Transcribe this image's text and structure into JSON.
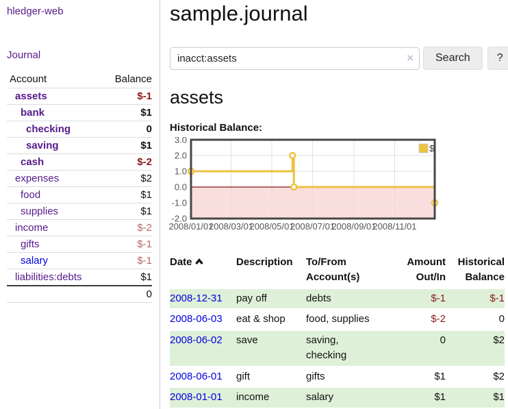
{
  "app": {
    "brand": "hledger-web",
    "nav": {
      "journal": "Journal"
    }
  },
  "sidebar": {
    "account_col": "Account",
    "balance_col": "Balance",
    "accounts": [
      {
        "name": "assets",
        "level": 1,
        "bold": true,
        "balance": "$-1",
        "neg": "strong",
        "link": "purple"
      },
      {
        "name": "bank",
        "level": 2,
        "bold": true,
        "balance": "$1",
        "neg": "none",
        "link": "purple"
      },
      {
        "name": "checking",
        "level": 3,
        "bold": true,
        "balance": "0",
        "neg": "none",
        "link": "purple"
      },
      {
        "name": "saving",
        "level": 3,
        "bold": true,
        "balance": "$1",
        "neg": "none",
        "link": "purple"
      },
      {
        "name": "cash",
        "level": 2,
        "bold": true,
        "balance": "$-2",
        "neg": "strong",
        "link": "purple"
      },
      {
        "name": "expenses",
        "level": 1,
        "bold": false,
        "balance": "$2",
        "neg": "none",
        "link": "purple"
      },
      {
        "name": "food",
        "level": 2,
        "bold": false,
        "balance": "$1",
        "neg": "none",
        "link": "purple"
      },
      {
        "name": "supplies",
        "level": 2,
        "bold": false,
        "balance": "$1",
        "neg": "none",
        "link": "purple"
      },
      {
        "name": "income",
        "level": 1,
        "bold": false,
        "balance": "$-2",
        "neg": "dim",
        "link": "purple"
      },
      {
        "name": "gifts",
        "level": 2,
        "bold": false,
        "balance": "$-1",
        "neg": "dim",
        "link": "purple"
      },
      {
        "name": "salary",
        "level": 2,
        "bold": false,
        "balance": "$-1",
        "neg": "dim",
        "link": "blue"
      },
      {
        "name": "liabilities:debts",
        "level": 1,
        "bold": false,
        "balance": "$1",
        "neg": "none",
        "link": "purple"
      }
    ],
    "total": "0"
  },
  "header": {
    "title": "sample.journal"
  },
  "search": {
    "value": "inacct:assets",
    "clear_icon": "×",
    "button_label": "Search",
    "help_label": "?"
  },
  "account_page": {
    "title": "assets",
    "chart_label": "Historical Balance:"
  },
  "chart_data": {
    "type": "line",
    "step": true,
    "title": "Historical Balance",
    "series": [
      {
        "name": "$",
        "color": "#edc240",
        "points": [
          {
            "date": "2008-01-01",
            "day": 0,
            "value": 1
          },
          {
            "date": "2008-06-01",
            "day": 152,
            "value": 2
          },
          {
            "date": "2008-06-03",
            "day": 154,
            "value": 0
          },
          {
            "date": "2008-12-31",
            "day": 365,
            "value": -1
          }
        ]
      }
    ],
    "x_ticks": [
      {
        "label": "2008/01/01",
        "day": 0
      },
      {
        "label": "2008/03/01",
        "day": 60
      },
      {
        "label": "2008/05/01",
        "day": 121
      },
      {
        "label": "2008/07/01",
        "day": 182
      },
      {
        "label": "2008/09/01",
        "day": 244
      },
      {
        "label": "2008/11/01",
        "day": 305
      }
    ],
    "y_ticks": [
      3.0,
      2.0,
      1.0,
      0.0,
      -1.0,
      -2.0
    ],
    "ylim": [
      -2,
      3
    ],
    "x_range_days": [
      0,
      365
    ],
    "grid": true,
    "legend_position": "top-right",
    "legend": [
      {
        "label": "$",
        "color": "#edc240"
      }
    ],
    "negative_fill": "#fbdede",
    "zero_line_color": "#8b1010",
    "border_color": "#474747",
    "tick_text_color": "#545454"
  },
  "register": {
    "columns": [
      "Date",
      "Description",
      "To/From Account(s)",
      "Amount Out/In",
      "Historical Balance"
    ],
    "sort_column": "Date",
    "sort_direction": "ascending",
    "rows": [
      {
        "date": "2008-12-31",
        "description": "pay off",
        "accounts": "debts",
        "amount": "$-1",
        "amount_neg": true,
        "balance": "$-1",
        "balance_neg": true,
        "shaded": true
      },
      {
        "date": "2008-06-03",
        "description": "eat & shop",
        "accounts": "food, supplies",
        "amount": "$-2",
        "amount_neg": true,
        "balance": "0",
        "balance_neg": false,
        "shaded": false
      },
      {
        "date": "2008-06-02",
        "description": "save",
        "accounts": "saving,\nchecking",
        "amount": "0",
        "amount_neg": false,
        "balance": "$2",
        "balance_neg": false,
        "shaded": true
      },
      {
        "date": "2008-06-01",
        "description": "gift",
        "accounts": "gifts",
        "amount": "$1",
        "amount_neg": false,
        "balance": "$2",
        "balance_neg": false,
        "shaded": false
      },
      {
        "date": "2008-01-01",
        "description": "income",
        "accounts": "salary",
        "amount": "$1",
        "amount_neg": false,
        "balance": "$1",
        "balance_neg": false,
        "shaded": true
      }
    ]
  },
  "colors": {
    "link_purple": "#551a8b",
    "link_blue": "#0000e0",
    "negative_strong": "#8b1919",
    "negative_dim": "#b36a6a",
    "row_stripe": "#dff0d8",
    "chart_line": "#edc240"
  }
}
